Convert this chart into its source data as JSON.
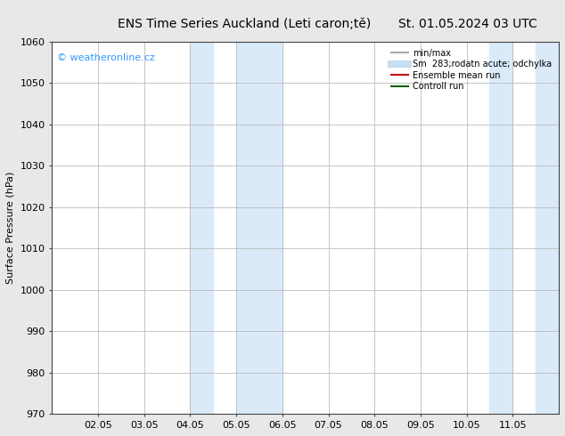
{
  "title_left": "ENS Time Series Auckland (Leti caron;tě)",
  "title_right": "St. 01.05.2024 03 UTC",
  "ylabel": "Surface Pressure (hPa)",
  "ylim": [
    970,
    1060
  ],
  "yticks": [
    970,
    980,
    990,
    1000,
    1010,
    1020,
    1030,
    1040,
    1050,
    1060
  ],
  "xtick_labels": [
    "02.05",
    "03.05",
    "04.05",
    "05.05",
    "06.05",
    "07.05",
    "08.05",
    "09.05",
    "10.05",
    "11.05"
  ],
  "xtick_positions": [
    1,
    2,
    3,
    4,
    5,
    6,
    7,
    8,
    9,
    10
  ],
  "xlim": [
    0,
    11
  ],
  "shade_regions": [
    {
      "xstart": 3.0,
      "xend": 3.5
    },
    {
      "xstart": 4.0,
      "xend": 5.0
    },
    {
      "xstart": 9.5,
      "xend": 10.0
    },
    {
      "xstart": 10.5,
      "xend": 11.0
    }
  ],
  "shade_color": "#daeaf8",
  "watermark_text": "© weatheronline.cz",
  "watermark_color": "#3399ff",
  "legend_entries": [
    {
      "label": "min/max",
      "color": "#aaaaaa",
      "lw": 1.5
    },
    {
      "label": "Sm  283;rodatn acute; odchylka",
      "color": "#c8ddf0",
      "lw": 6
    },
    {
      "label": "Ensemble mean run",
      "color": "#cc0000",
      "lw": 1.5
    },
    {
      "label": "Controll run",
      "color": "#006600",
      "lw": 1.5
    }
  ],
  "bg_color": "#e8e8e8",
  "axes_bg_color": "#ffffff",
  "title_fontsize": 10,
  "tick_fontsize": 8,
  "ylabel_fontsize": 8,
  "legend_fontsize": 7,
  "grid_color": "#bbbbbb",
  "spine_color": "#444444"
}
